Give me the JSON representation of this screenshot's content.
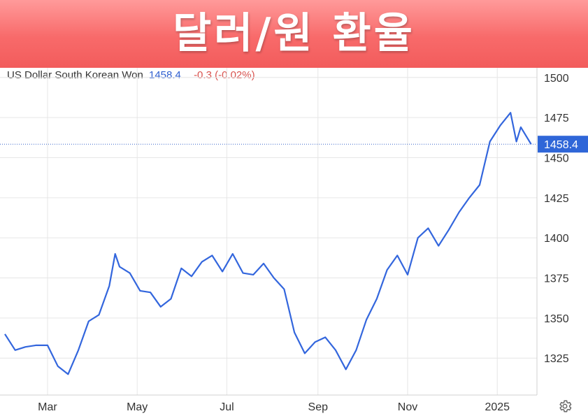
{
  "banner": {
    "title": "달러/원 환율"
  },
  "legend": {
    "instrument": "US Dollar South Korean Won",
    "price": "1458.4",
    "change": "-0.3 (-0.02%)"
  },
  "icons": {
    "settings": "gear-icon"
  },
  "colors": {
    "line": "#3366dd",
    "grid": "#e6e6e6",
    "price_tag": "#2f66d8",
    "change": "#d9534f"
  },
  "chart_data": {
    "type": "line",
    "series": [
      {
        "name": "US Dollar South Korean Won",
        "x": [
          "2024-02-01",
          "2024-02-08",
          "2024-02-15",
          "2024-02-22",
          "2024-03-01",
          "2024-03-08",
          "2024-03-15",
          "2024-03-22",
          "2024-03-29",
          "2024-04-05",
          "2024-04-12",
          "2024-04-16",
          "2024-04-19",
          "2024-04-26",
          "2024-05-03",
          "2024-05-10",
          "2024-05-17",
          "2024-05-24",
          "2024-05-31",
          "2024-06-07",
          "2024-06-14",
          "2024-06-21",
          "2024-06-28",
          "2024-07-05",
          "2024-07-12",
          "2024-07-19",
          "2024-07-26",
          "2024-08-02",
          "2024-08-09",
          "2024-08-16",
          "2024-08-23",
          "2024-08-30",
          "2024-09-06",
          "2024-09-13",
          "2024-09-20",
          "2024-09-27",
          "2024-10-04",
          "2024-10-11",
          "2024-10-18",
          "2024-10-25",
          "2024-11-01",
          "2024-11-08",
          "2024-11-15",
          "2024-11-22",
          "2024-11-29",
          "2024-12-06",
          "2024-12-13",
          "2024-12-20",
          "2024-12-27",
          "2025-01-03",
          "2025-01-10",
          "2025-01-14",
          "2025-01-17",
          "2025-01-24"
        ],
        "y": [
          1340,
          1330,
          1332,
          1333,
          1333,
          1320,
          1315,
          1330,
          1348,
          1352,
          1370,
          1390,
          1382,
          1378,
          1367,
          1366,
          1357,
          1362,
          1381,
          1376,
          1385,
          1389,
          1379,
          1390,
          1378,
          1377,
          1384,
          1375,
          1368,
          1341,
          1328,
          1335,
          1338,
          1330,
          1318,
          1330,
          1349,
          1362,
          1380,
          1389,
          1377,
          1400,
          1406,
          1395,
          1405,
          1416,
          1425,
          1433,
          1460,
          1470,
          1478,
          1460,
          1469,
          1458.4
        ]
      }
    ],
    "yticks": [
      1325,
      1350,
      1375,
      1400,
      1425,
      1450,
      1475,
      1500
    ],
    "xticks": [
      {
        "x": "2024-03-01",
        "label": "Mar"
      },
      {
        "x": "2024-05-01",
        "label": "May"
      },
      {
        "x": "2024-07-01",
        "label": "Jul"
      },
      {
        "x": "2024-09-01",
        "label": "Sep"
      },
      {
        "x": "2024-11-01",
        "label": "Nov"
      },
      {
        "x": "2025-01-01",
        "label": "2025"
      }
    ],
    "xlim": [
      "2024-02-01",
      "2025-01-28"
    ],
    "ylim": [
      1302,
      1506
    ],
    "last_value_label": "1458.4",
    "grid": true,
    "y_axis_side": "right",
    "xlabel": "",
    "ylabel": ""
  }
}
